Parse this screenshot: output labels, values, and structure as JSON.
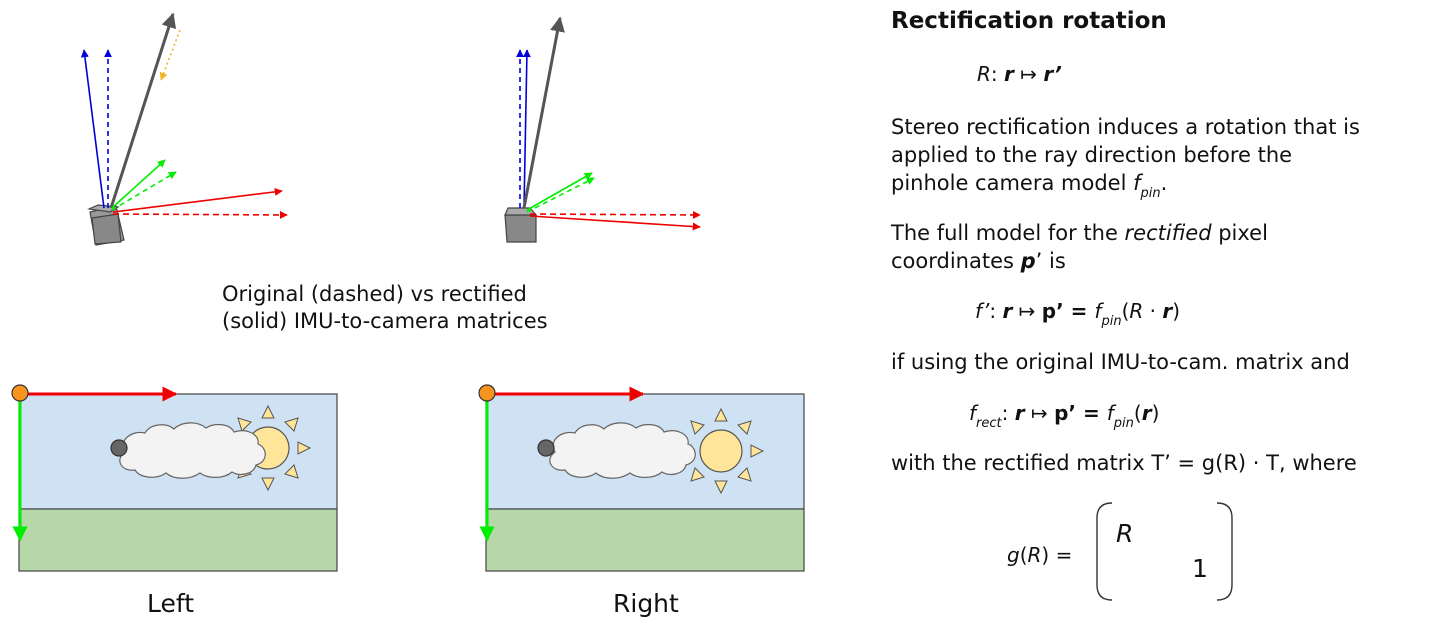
{
  "caption": {
    "line1": "Original (dashed) vs rectified",
    "line2": "(solid) IMU-to-camera matrices"
  },
  "images": {
    "left_label": "Left",
    "right_label": "Right"
  },
  "panel": {
    "title": "Rectification rotation",
    "eq1": {
      "R": "R",
      "colon": ": ",
      "r": "r",
      "maps": " ↦ ",
      "rp": "r’"
    },
    "para1": {
      "line1": "Stereo rectification induces a rotation that is",
      "line2": "applied to the ray direction before the",
      "line3": "pinhole camera model ",
      "f": "f",
      "pin": "pin",
      "dot": "."
    },
    "para2": {
      "line1a": "The full model for the ",
      "rectified": "rectified",
      "line1b": " pixel",
      "line2a": "coordinates ",
      "p": "p",
      "line2b": "’ is"
    },
    "eq2": {
      "fprime": "f’",
      "colon": ": ",
      "r": "r",
      "maps": " ↦ ",
      "pp": "p’ = ",
      "f": "f",
      "pin": "pin",
      "open": "(",
      "R": "R",
      "cdot": " · ",
      "r2": "r",
      "close": ")"
    },
    "para3": "if using the original IMU-to-cam. matrix and",
    "eq3": {
      "f": "f",
      "rect": "rect",
      "colon": ": ",
      "r": "r",
      "maps": " ↦ ",
      "pp": "p’ = ",
      "f2": "f",
      "pin": "pin",
      "open": "(",
      "r2": "r",
      "close": ")"
    },
    "para4": "with the rectified matrix T’ = g(R) · T, where",
    "eq4": {
      "g": "g",
      "open": "(",
      "R": "R",
      "close": ") =",
      "matR": "R",
      "one": "1"
    }
  },
  "colors": {
    "x_axis": "#ee0000",
    "y_axis": "#00ee00",
    "z_axis": "#0000dd",
    "ray": "#555555",
    "ray_proj": "#f0b429",
    "origin": "#f7941d",
    "sky": "#cfe2f3",
    "ground": "#b6d7a8",
    "sun": "#ffe599",
    "cloud": "#f3f3f3"
  }
}
